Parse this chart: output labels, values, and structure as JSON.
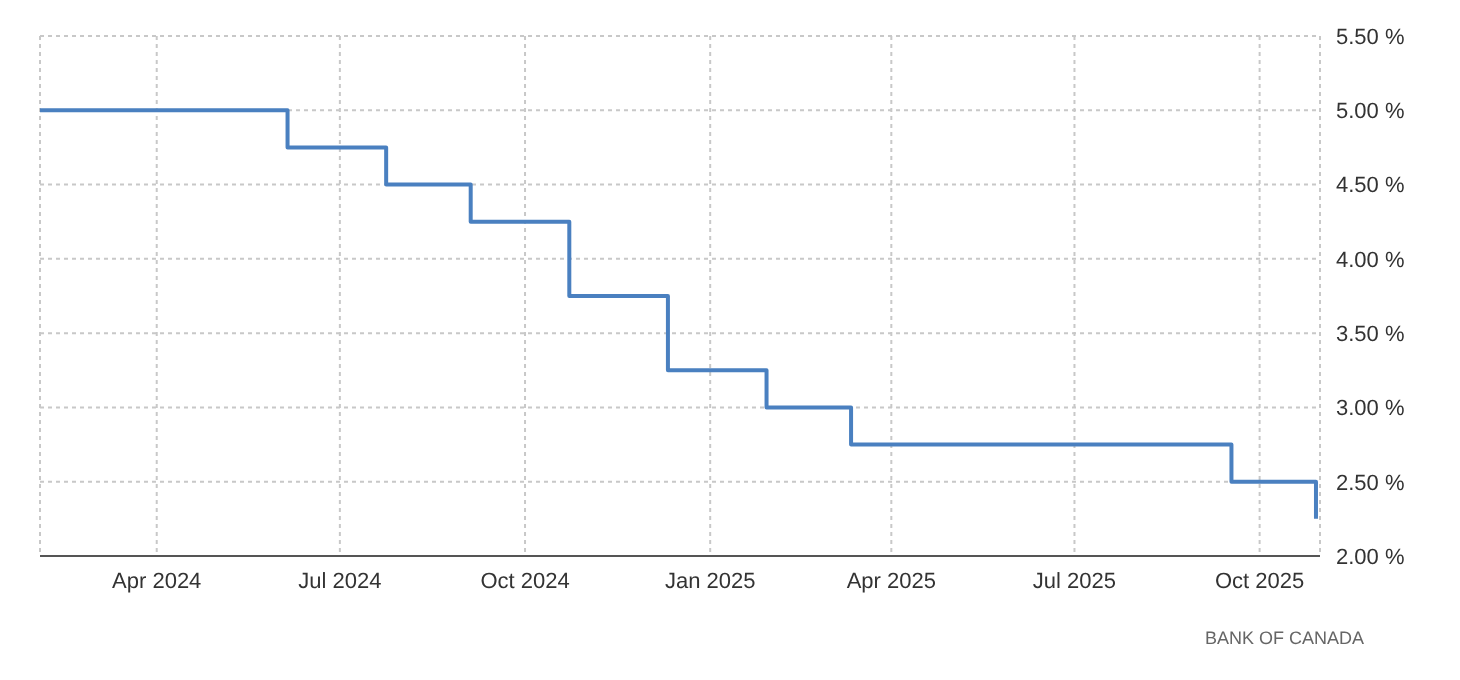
{
  "chart_data": {
    "type": "step",
    "x": [
      "2024-02-03",
      "2024-06-05",
      "2024-07-24",
      "2024-09-04",
      "2024-10-23",
      "2024-12-11",
      "2025-01-29",
      "2025-03-12",
      "2025-09-17",
      "2025-10-29"
    ],
    "series": [
      {
        "color": "#4a80c0",
        "values": [
          5.0,
          4.75,
          4.5,
          4.25,
          3.75,
          3.25,
          3.0,
          2.75,
          2.5,
          2.25
        ]
      }
    ],
    "xlim": [
      "2024-02-03",
      "2025-10-31"
    ],
    "xticks": [
      {
        "value": "2024-04-01",
        "label": "Apr 2024"
      },
      {
        "value": "2024-07-01",
        "label": "Jul 2024"
      },
      {
        "value": "2024-10-01",
        "label": "Oct 2024"
      },
      {
        "value": "2025-01-01",
        "label": "Jan 2025"
      },
      {
        "value": "2025-04-01",
        "label": "Apr 2025"
      },
      {
        "value": "2025-07-01",
        "label": "Jul 2025"
      },
      {
        "value": "2025-10-01",
        "label": "Oct 2025"
      }
    ],
    "ylim": [
      2.0,
      5.5
    ],
    "yticks": [
      {
        "value": 2.0,
        "label": "2.00 %"
      },
      {
        "value": 2.5,
        "label": "2.50 %"
      },
      {
        "value": 3.0,
        "label": "3.00 %"
      },
      {
        "value": 3.5,
        "label": "3.50 %"
      },
      {
        "value": 4.0,
        "label": "4.00 %"
      },
      {
        "value": 4.5,
        "label": "4.50 %"
      },
      {
        "value": 5.0,
        "label": "5.00 %"
      },
      {
        "value": 5.5,
        "label": "5.50 %"
      }
    ],
    "grid": true,
    "annotations": [
      "BANK OF CANADA"
    ]
  }
}
